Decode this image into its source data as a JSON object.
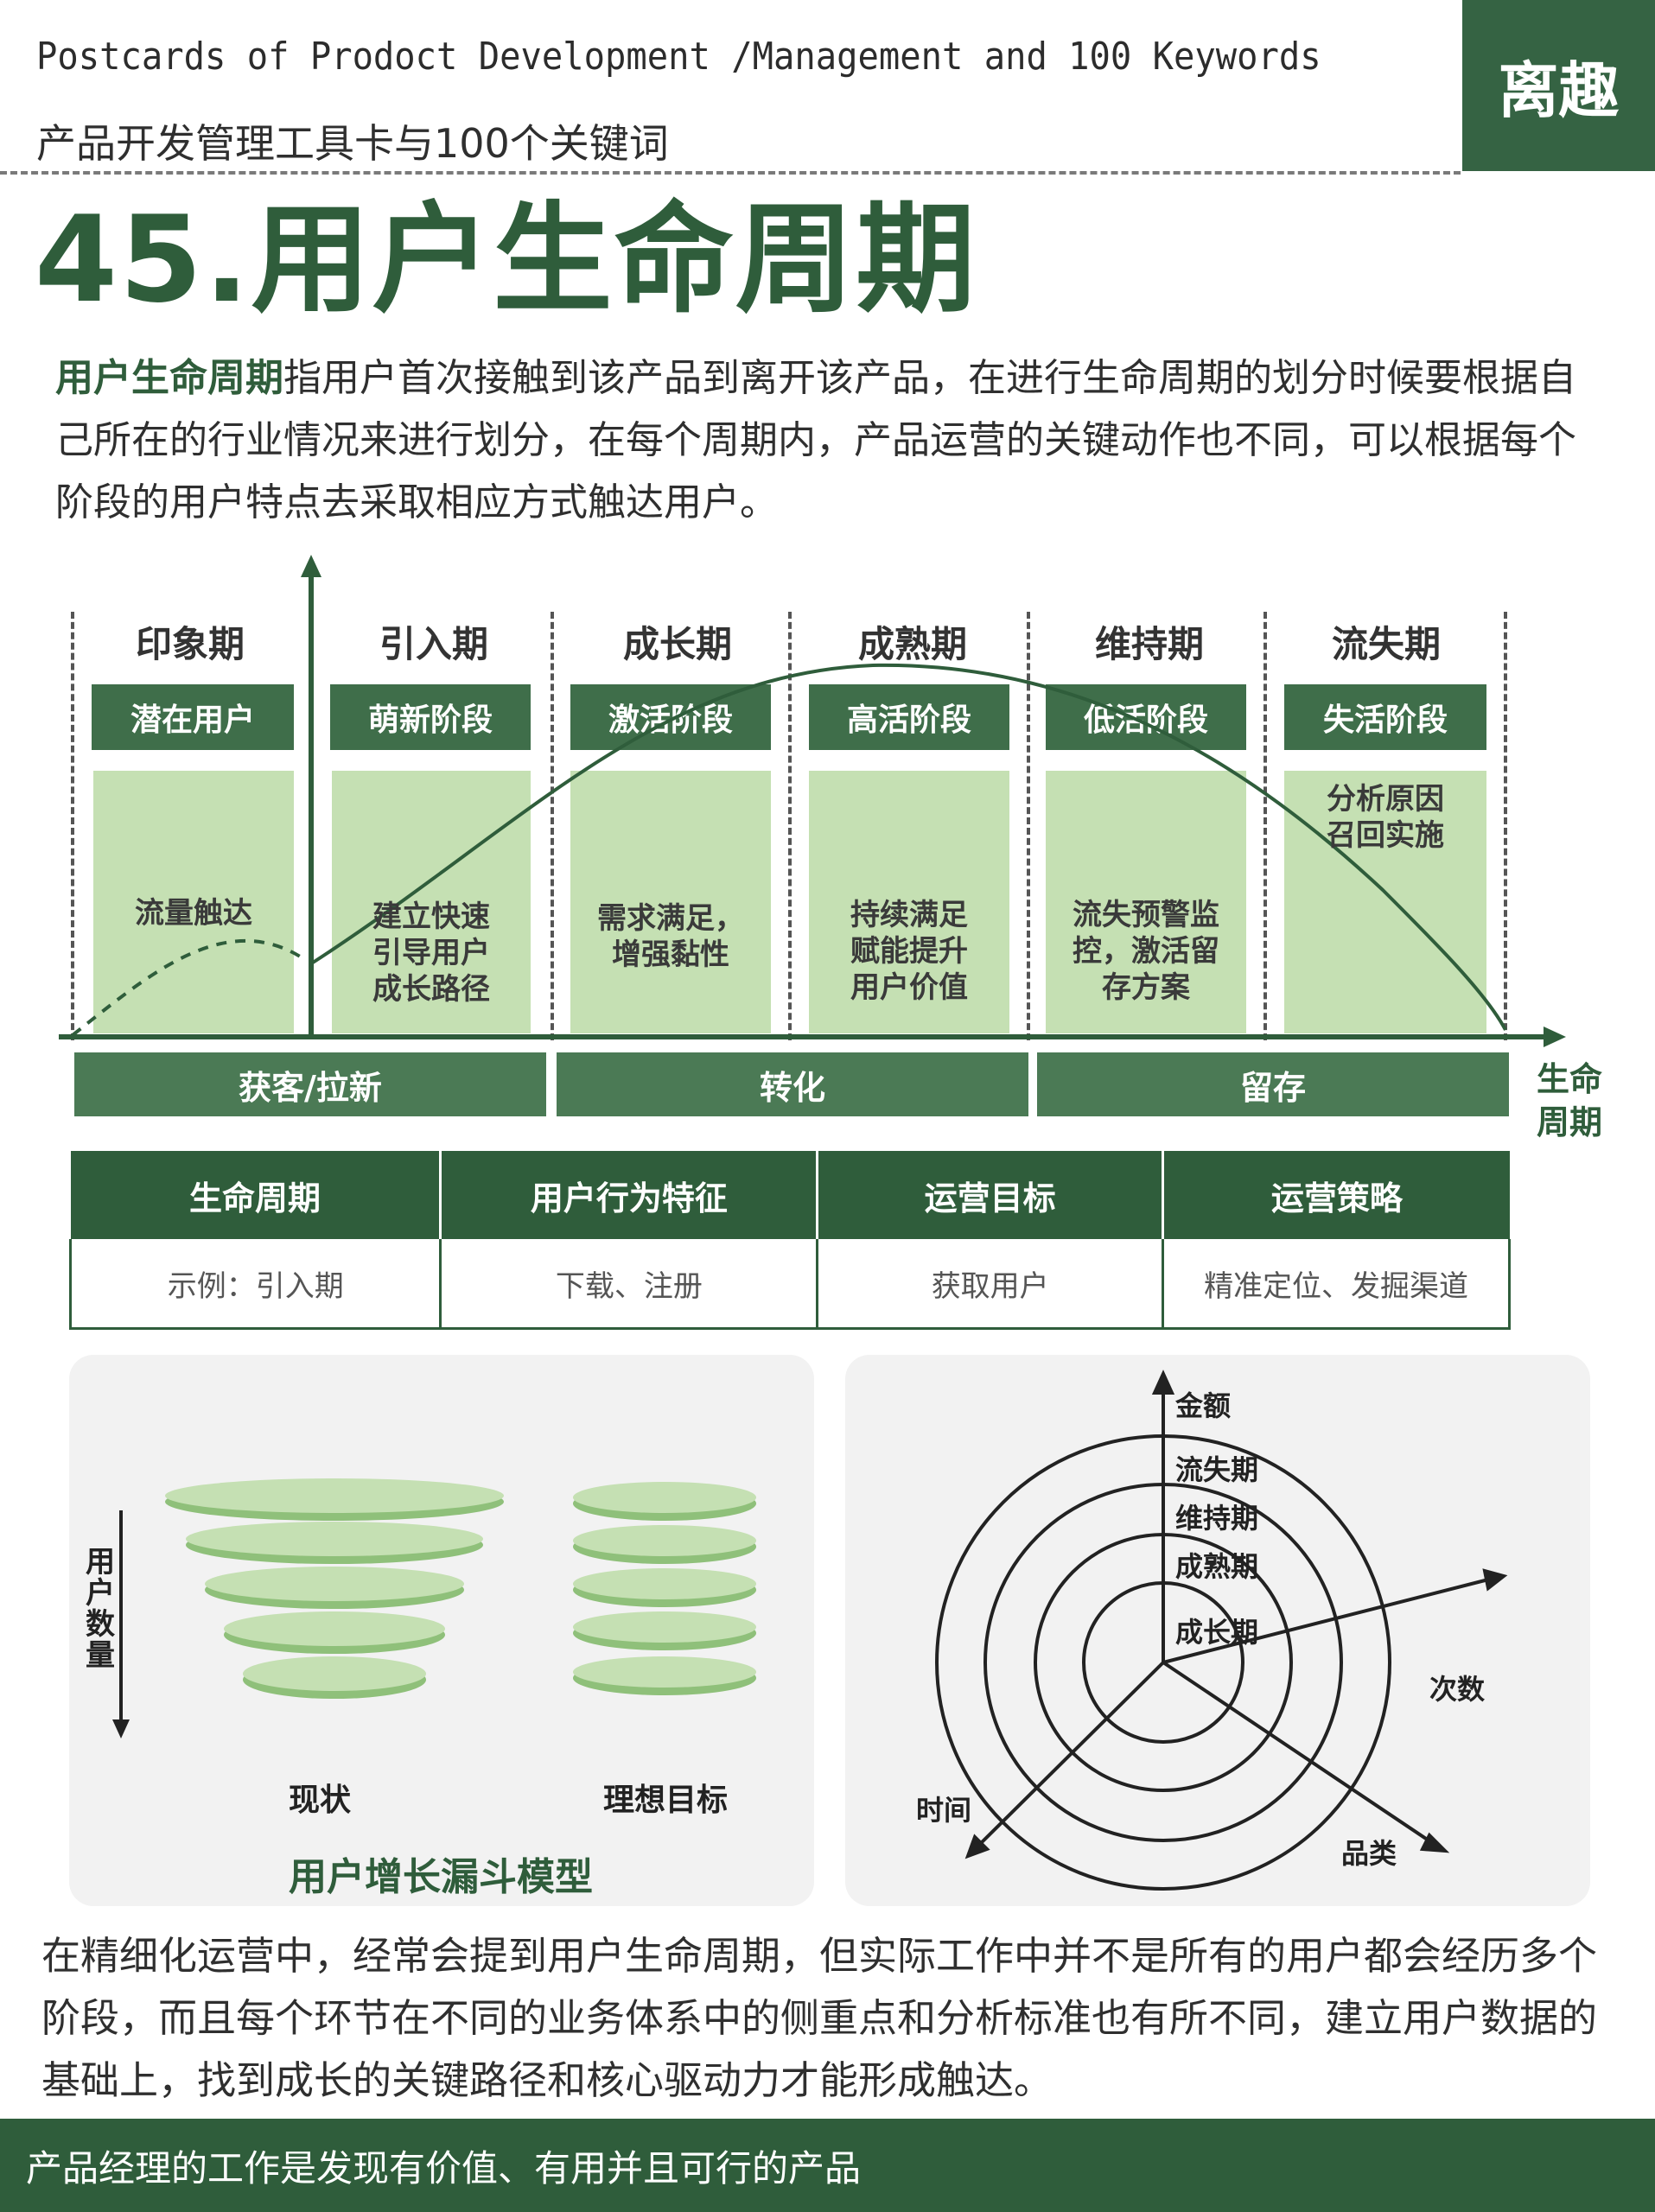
{
  "header": {
    "title_en": "Postcards of Prodoct Development /Management and 100 Keywords",
    "subtitle_cn": "产品开发管理工具卡与100个关键词",
    "logo": "离趣"
  },
  "page_title": "45.用户生命周期",
  "intro": {
    "term": "用户生命周期",
    "text": "指用户首次接触到该产品到离开该产品，在进行生命周期的划分时候要根据自己所在的行业情况来进行划分，在每个周期内，产品运营的关键动作也不同，可以根据每个阶段的用户特点去采取相应方式触达用户。"
  },
  "lifecycle": {
    "stages": [
      {
        "name": "印象期",
        "phase": "潜在用户",
        "action": "流量触达"
      },
      {
        "name": "引入期",
        "phase": "萌新阶段",
        "action": "建立快速\n引导用户\n成长路径"
      },
      {
        "name": "成长期",
        "phase": "激活阶段",
        "action": "需求满足，\n增强黏性"
      },
      {
        "name": "成熟期",
        "phase": "高活阶段",
        "action": "持续满足\n赋能提升\n用户价值"
      },
      {
        "name": "维持期",
        "phase": "低活阶段",
        "action": "流失预警监\n控，激活留\n存方案"
      },
      {
        "name": "流失期",
        "phase": "失活阶段",
        "action": "分析原因\n召回实施"
      }
    ],
    "strips": [
      "获客/拉新",
      "转化",
      "留存"
    ],
    "x_axis_label": "生命\n周期"
  },
  "table": {
    "headers": [
      "生命周期",
      "用户行为特征",
      "运营目标",
      "运营策略"
    ],
    "row": [
      "示例：引入期",
      "下载、注册",
      "获取用户",
      "精准定位、发掘渠道"
    ]
  },
  "funnel": {
    "axis_label": "用户数量",
    "labels": [
      "现状",
      "理想目标"
    ],
    "title": "用户增长漏斗模型"
  },
  "radar": {
    "axes": [
      "金额",
      "次数",
      "品类",
      "时间"
    ],
    "rings": [
      "流失期",
      "维持期",
      "成熟期",
      "成长期"
    ]
  },
  "paragraph2": "在精细化运营中，经常会提到用户生命周期，但实际工作中并不是所有的用户都会经历多个阶段，而且每个环节在不同的业务体系中的侧重点和分析标准也有所不同，建立用户数据的基础上，找到成长的关键路径和核心驱动力才能形成触达。",
  "footer": "产品经理的工作是发现有价值、有用并且可行的产品",
  "colors": {
    "dark_green": "#2f5d3b",
    "mid_green": "#4b7a55",
    "light_green": "#c5e0b3"
  }
}
